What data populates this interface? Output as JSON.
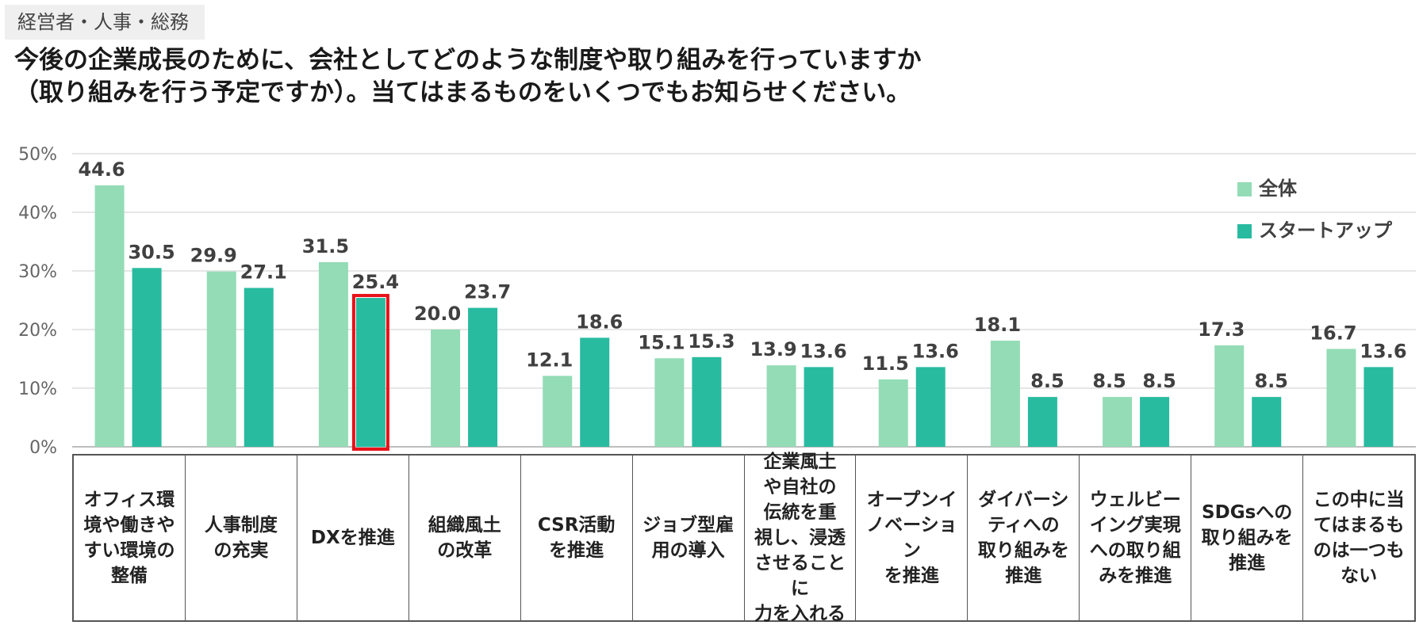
{
  "header": {
    "tag": "経営者・人事・総務",
    "question_line1": "今後の企業成長のために、会社としてどのような制度や取り組みを行っていますか",
    "question_line2": "（取り組みを行う予定ですか）。当てはまるものをいくつでもお知らせください。"
  },
  "chart_data": {
    "type": "bar",
    "title": "今後の企業成長のために、会社としてどのような制度や取り組みを行っていますか（取り組みを行う予定ですか）。当てはまるものをいくつでもお知らせください。",
    "categories": [
      "オフィス環\n境や働きや\nすい環境の\n整備",
      "人事制度\nの充実",
      "DXを推進",
      "組織風土\nの改革",
      "CSR活動\nを推進",
      "ジョブ型雇\n用の導入",
      "企業風土\nや自社の\n伝統を重\n視し、浸透\nさせることに\n力を入れる",
      "オープンイ\nノベーション\nを推進",
      "ダイバーシ\nティへの\n取り組みを\n推進",
      "ウェルビー\nイング実現\nへの取り組\nみを推進",
      "SDGsへの\n取り組みを\n推進",
      "この中に当\nてはまるも\nのは一つも\nない"
    ],
    "series": [
      {
        "name": "全体",
        "color": "#93dcb6",
        "values": [
          44.6,
          29.9,
          31.5,
          20.0,
          12.1,
          15.1,
          13.9,
          11.5,
          18.1,
          8.5,
          17.3,
          16.7
        ],
        "labels": [
          "44.6",
          "29.9",
          "31.5",
          "20.0",
          "12.1",
          "15.1",
          "13.9",
          "11.5",
          "18.1",
          "8.5",
          "17.3",
          "16.7"
        ]
      },
      {
        "name": "スタートアップ",
        "color": "#28bba0",
        "values": [
          30.5,
          27.1,
          25.4,
          23.7,
          18.6,
          15.3,
          13.6,
          13.6,
          8.5,
          8.5,
          8.5,
          13.6
        ],
        "labels": [
          "30.5",
          "27.1",
          "25.4",
          "23.7",
          "18.6",
          "15.3",
          "13.6",
          "13.6",
          "8.5",
          "8.5",
          "8.5",
          "13.6"
        ]
      }
    ],
    "ylim": [
      0,
      50
    ],
    "yticks": [
      "0%",
      "10%",
      "20%",
      "30%",
      "40%",
      "50%"
    ],
    "xlabel": "",
    "ylabel": "",
    "legend_position": "top-right",
    "highlight": {
      "series": 1,
      "category": 2,
      "color": "#e8121a"
    }
  }
}
